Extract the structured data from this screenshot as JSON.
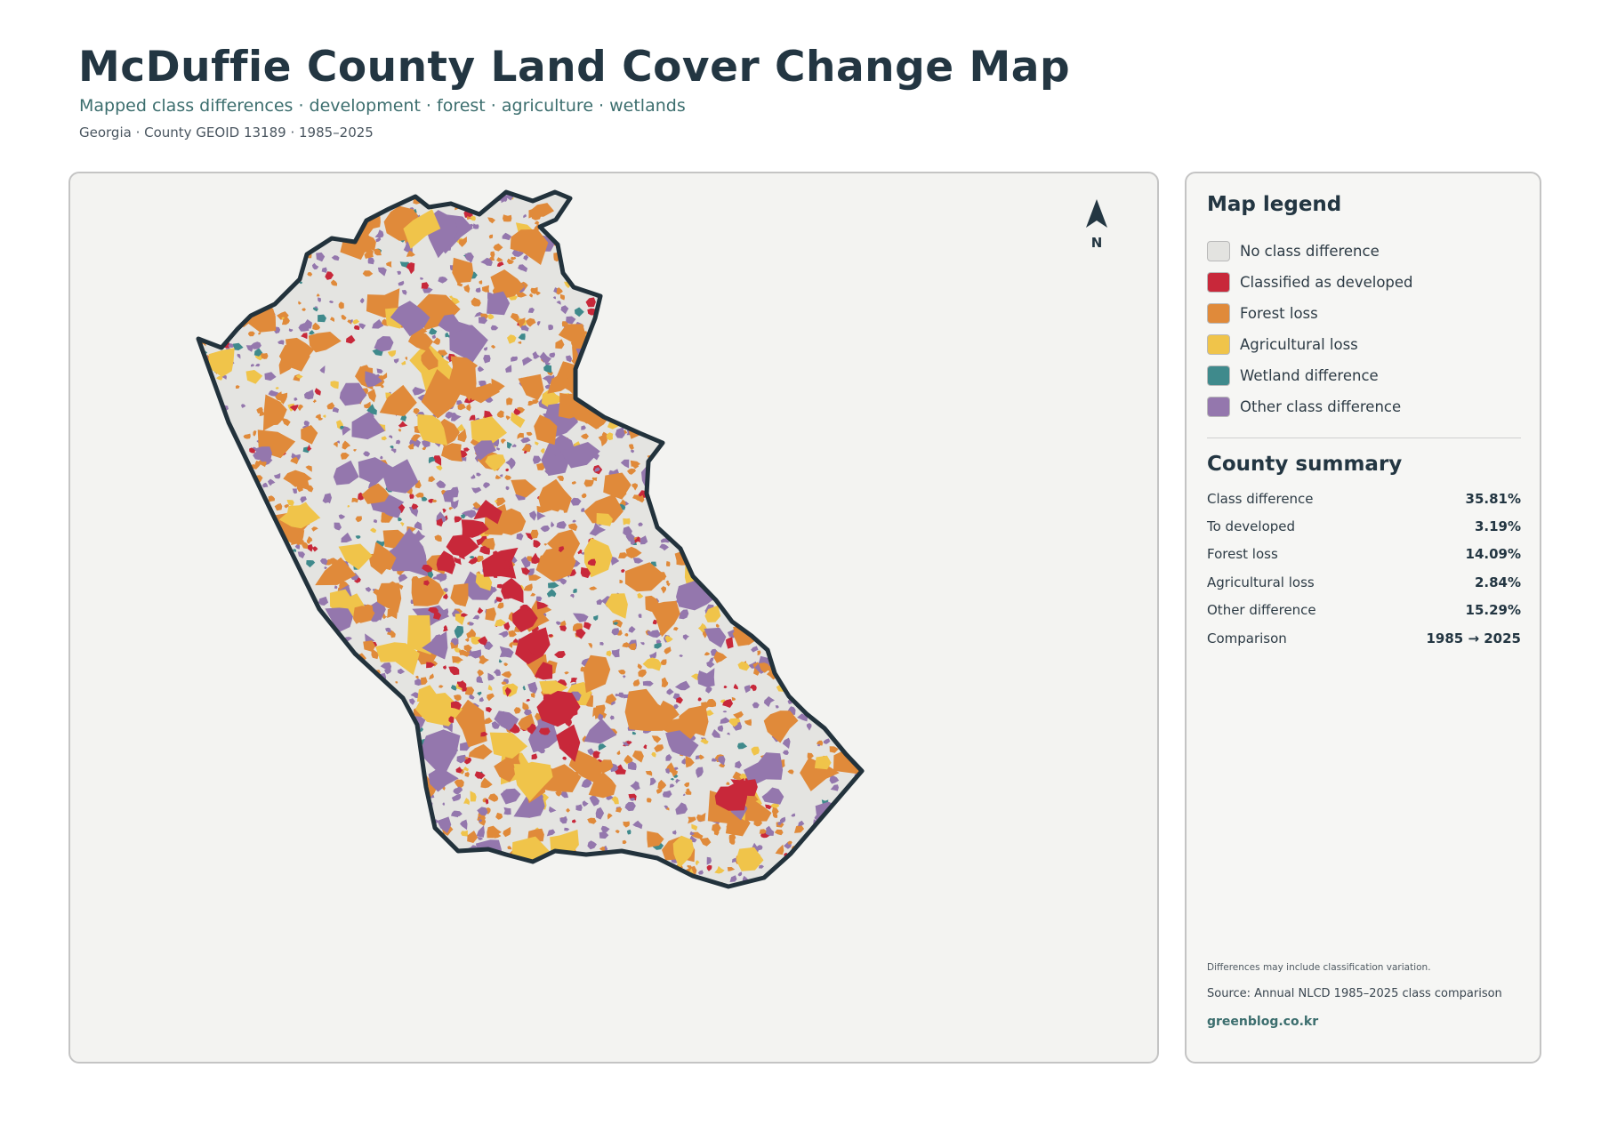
{
  "header": {
    "title": "McDuffie County Land Cover Change Map",
    "subtitle": "Mapped class differences · development · forest · agriculture · wetlands",
    "meta": "Georgia · County GEOID 13189 · 1985–2025"
  },
  "map": {
    "north_label": "N",
    "colors": {
      "background": "#f3f3f1",
      "county_fill": "#e4e4e1",
      "outline": "#22323c",
      "developed": "#c8283a",
      "forest_loss": "#e08a3a",
      "agricultural_loss": "#f0c44a",
      "wetland": "#3f8a8c",
      "other": "#9477ad"
    }
  },
  "legend": {
    "title": "Map legend",
    "items": [
      {
        "label": "No class difference",
        "color": "#e3e3e0"
      },
      {
        "label": "Classified as developed",
        "color": "#c8283a"
      },
      {
        "label": "Forest loss",
        "color": "#e08a3a"
      },
      {
        "label": "Agricultural loss",
        "color": "#f0c44a"
      },
      {
        "label": "Wetland difference",
        "color": "#3f8a8c"
      },
      {
        "label": "Other class difference",
        "color": "#9477ad"
      }
    ]
  },
  "summary": {
    "title": "County summary",
    "rows": [
      {
        "label": "Class difference",
        "value": "35.81%"
      },
      {
        "label": "To developed",
        "value": "3.19%"
      },
      {
        "label": "Forest loss",
        "value": "14.09%"
      },
      {
        "label": "Agricultural loss",
        "value": "2.84%"
      },
      {
        "label": "Other difference",
        "value": "15.29%"
      },
      {
        "label": "Comparison",
        "value": "1985 → 2025"
      }
    ]
  },
  "footer": {
    "note": "Differences may include classification variation.",
    "source": "Source: Annual NLCD 1985–2025 class comparison",
    "site": "greenblog.co.kr"
  }
}
